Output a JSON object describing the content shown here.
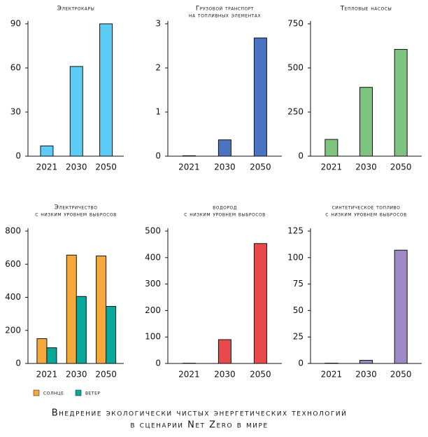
{
  "chart_data": [
    {
      "type": "bar",
      "title": "Электрокары",
      "categories": [
        "2021",
        "2030",
        "2050"
      ],
      "values": [
        7,
        61,
        90
      ],
      "color": "#5ccbf5",
      "ylim": [
        0,
        90
      ],
      "yticks": [
        0,
        30,
        60,
        90
      ]
    },
    {
      "type": "bar",
      "title": "Грузовой транспорт",
      "subtitle": "на топливных элементах",
      "categories": [
        "2021",
        "2030",
        "2050"
      ],
      "values": [
        0.01,
        0.37,
        2.68
      ],
      "color": "#4a74c2",
      "ylim": [
        0,
        3
      ],
      "yticks": [
        0,
        1,
        2,
        3
      ]
    },
    {
      "type": "bar",
      "title": "Тепловые насосы",
      "categories": [
        "2021",
        "2030",
        "2050"
      ],
      "values": [
        95,
        390,
        605
      ],
      "color": "#7dc47e",
      "ylim": [
        0,
        750
      ],
      "yticks": [
        0,
        250,
        500,
        750
      ]
    },
    {
      "type": "bar",
      "title": "Электричество",
      "subtitle": "с низким уровнем выбросов",
      "categories": [
        "2021",
        "2030",
        "2050"
      ],
      "series": [
        {
          "name": "солнце",
          "color": "#f6a93b",
          "values": [
            150,
            655,
            650
          ]
        },
        {
          "name": "ветер",
          "color": "#08a89a",
          "values": [
            95,
            405,
            345
          ]
        }
      ],
      "ylim": [
        0,
        800
      ],
      "yticks": [
        0,
        200,
        400,
        600,
        800
      ]
    },
    {
      "type": "bar",
      "title": "водород",
      "subtitle": "с низким уровнем выбросов",
      "categories": [
        "2021",
        "2030",
        "2050"
      ],
      "values": [
        1,
        90,
        453
      ],
      "color": "#e8494c",
      "ylim": [
        0,
        500
      ],
      "yticks": [
        0,
        100,
        200,
        300,
        400,
        500
      ]
    },
    {
      "type": "bar",
      "title": "синтетическое топливо",
      "subtitle": "с низким уровнем выбросов",
      "categories": [
        "2021",
        "2030",
        "2050"
      ],
      "values": [
        0.3,
        3,
        107
      ],
      "color": "#9e88c6",
      "ylim": [
        0,
        125
      ],
      "yticks": [
        0,
        25,
        50,
        75,
        100,
        125
      ]
    }
  ],
  "caption": [
    "Внедрение экологически чистых энергетических технологий",
    "в сценарии Net Zero в мире"
  ]
}
